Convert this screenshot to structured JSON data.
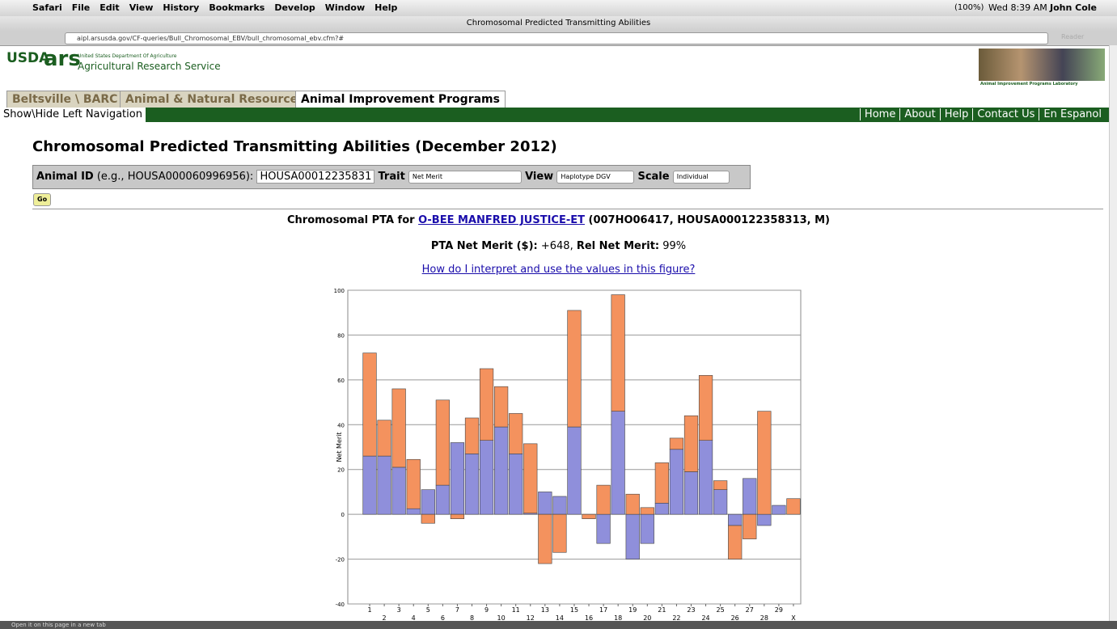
{
  "menu_bar": {
    "items": [
      "Safari",
      "File",
      "Edit",
      "View",
      "History",
      "Bookmarks",
      "Develop",
      "Window",
      "Help"
    ],
    "battery": "(100%)",
    "clock": "Wed 8:39 AM",
    "user": "John Cole"
  },
  "window": {
    "title": "Chromosomal Predicted Transmitting Abilities",
    "url": "aipl.arsusda.gov/CF-queries/Bull_Chromosomal_EBV/bull_chromosomal_ebv.cfm?#",
    "reader": "Reader"
  },
  "header": {
    "usda": "USDA",
    "ars": "ars",
    "department": "United States Department Of Agriculture",
    "service": "Agricultural Research Service",
    "lab": "Animal Improvement Programs Laboratory"
  },
  "tabs": [
    "Beltsville \\ BARC",
    "Animal & Natural Resources",
    "Animal Improvement Programs"
  ],
  "nav": {
    "toggle": "Show\\Hide Left Navigation",
    "links": [
      "Home",
      "About",
      "Help",
      "Contact Us",
      "En Espanol"
    ]
  },
  "heading": "Chromosomal Predicted Transmitting Abilities (December 2012)",
  "form": {
    "animal_label": "Animal ID",
    "animal_hint": "(e.g., HOUSA000060996956):",
    "animal_value": "HOUSA00012235831",
    "trait_label": "Trait",
    "trait_value": "Net Merit",
    "view_label": "View",
    "view_value": "Haplotype DGV",
    "scale_label": "Scale",
    "scale_value": "Individual",
    "go": "Go"
  },
  "result": {
    "prefix": "Chromosomal PTA for",
    "animal_name": "O-BEE MANFRED JUSTICE-ET",
    "animal_ids": "(007HO06417, HOUSA000122358313, M)",
    "pta_label": "PTA Net Merit ($):",
    "pta_value": "+648,",
    "rel_label": "Rel Net Merit:",
    "rel_value": "99%",
    "help_link": "How do I interpret and use the values in this figure?"
  },
  "status_bar": "Open it on this page in a new tab",
  "chart_data": {
    "type": "bar",
    "stacked": true,
    "y_label": "Net Merit",
    "categories": [
      "1",
      "2",
      "3",
      "4",
      "5",
      "6",
      "7",
      "8",
      "9",
      "10",
      "11",
      "12",
      "13",
      "14",
      "15",
      "16",
      "17",
      "18",
      "19",
      "20",
      "21",
      "22",
      "23",
      "24",
      "25",
      "26",
      "27",
      "28",
      "29",
      "X"
    ],
    "series": [
      {
        "color": "#8f8fdb",
        "values": [
          26,
          26,
          21,
          2.5,
          11,
          13,
          32,
          27,
          33,
          39,
          27,
          0.5,
          10,
          8,
          39,
          0,
          -13,
          46,
          -20,
          -13,
          5,
          29,
          19,
          33,
          11,
          -5,
          16,
          -5,
          4,
          0
        ]
      },
      {
        "color": "#f4925e",
        "values": [
          46,
          16,
          35,
          22,
          -4,
          38,
          -2,
          16,
          32,
          18,
          18,
          31,
          -22,
          -17,
          52,
          -2,
          13,
          52,
          9,
          3,
          18,
          5,
          25,
          29,
          4,
          -15,
          -11,
          46,
          0,
          7
        ]
      }
    ],
    "ylim": [
      -40,
      100
    ],
    "yticks": [
      -40,
      -20,
      0,
      20,
      40,
      60,
      80,
      100
    ],
    "grid": true
  }
}
